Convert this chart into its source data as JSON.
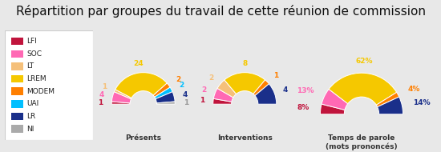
{
  "title": "Répartition par groupes du travail de cette réunion de commission",
  "title_fontsize": 11,
  "background_color": "#e8e8e8",
  "legend_bg": "#ffffff",
  "legend_labels": [
    "LFI",
    "SOC",
    "LT",
    "LREM",
    "MODEM",
    "UAI",
    "LR",
    "NI"
  ],
  "colors": {
    "LFI": "#c0143c",
    "SOC": "#ff69b4",
    "LT": "#f5c07a",
    "LREM": "#f5c800",
    "MODEM": "#ff7f00",
    "UAI": "#00bfff",
    "LR": "#1a2f8a",
    "NI": "#aaaaaa"
  },
  "charts": [
    {
      "title": "Présents",
      "values": [
        1,
        4,
        1,
        24,
        2,
        2,
        4,
        1
      ],
      "groups": [
        "LFI",
        "SOC",
        "LT",
        "LREM",
        "MODEM",
        "UAI",
        "LR",
        "NI"
      ],
      "labels": [
        "1",
        "4",
        "1",
        "24",
        "2",
        "2",
        "4",
        "1"
      ],
      "label_colors": [
        "#c0143c",
        "#ff69b4",
        "#f5c07a",
        "#f5c800",
        "#ff7f00",
        "#00bfff",
        "#1a2f8a",
        "#999999"
      ]
    },
    {
      "title": "Interventions",
      "values": [
        1,
        2,
        2,
        8,
        1,
        0,
        4,
        0
      ],
      "groups": [
        "LFI",
        "SOC",
        "LT",
        "LREM",
        "MODEM",
        "UAI",
        "LR",
        "NI"
      ],
      "labels": [
        "1",
        "2",
        "2",
        "8",
        "1",
        "",
        "4",
        ""
      ],
      "label_colors": [
        "#c0143c",
        "#ff69b4",
        "#f5c07a",
        "#f5c800",
        "#ff7f00",
        "#00bfff",
        "#1a2f8a",
        "#999999"
      ]
    },
    {
      "title": "Temps de parole\n(mots prononcés)",
      "values": [
        8,
        13,
        0,
        62,
        4,
        0,
        14,
        0
      ],
      "groups": [
        "LFI",
        "SOC",
        "LT",
        "LREM",
        "MODEM",
        "UAI",
        "LR",
        "NI"
      ],
      "labels": [
        "8%",
        "13%",
        "",
        "62%",
        "4%",
        "",
        "14%",
        ""
      ],
      "label_colors": [
        "#c0143c",
        "#ff69b4",
        "#f5c07a",
        "#f5c800",
        "#ff7f00",
        "#00bfff",
        "#1a2f8a",
        "#999999"
      ]
    }
  ]
}
